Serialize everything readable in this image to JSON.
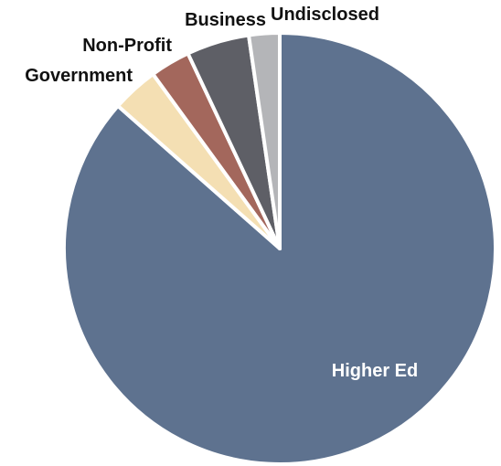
{
  "chart_data": {
    "type": "pie",
    "title": "",
    "slices": [
      {
        "label": "Higher Ed",
        "value": 86.5,
        "color": "#5E728F",
        "label_color": "#FFFFFF",
        "label_placement": "inside"
      },
      {
        "label": "Government",
        "value": 3.5,
        "color": "#F4DFB3",
        "label_color": "#111111",
        "label_placement": "outside"
      },
      {
        "label": "Non-Profit",
        "value": 3.0,
        "color": "#A3675C",
        "label_color": "#111111",
        "label_placement": "outside"
      },
      {
        "label": "Business",
        "value": 4.7,
        "color": "#5E5F66",
        "label_color": "#111111",
        "label_placement": "outside"
      },
      {
        "label": "Undisclosed",
        "value": 2.3,
        "color": "#B4B5B8",
        "label_color": "#111111",
        "label_placement": "outside"
      }
    ],
    "start_direction": "top",
    "direction": "clockwise",
    "legend": "none"
  }
}
